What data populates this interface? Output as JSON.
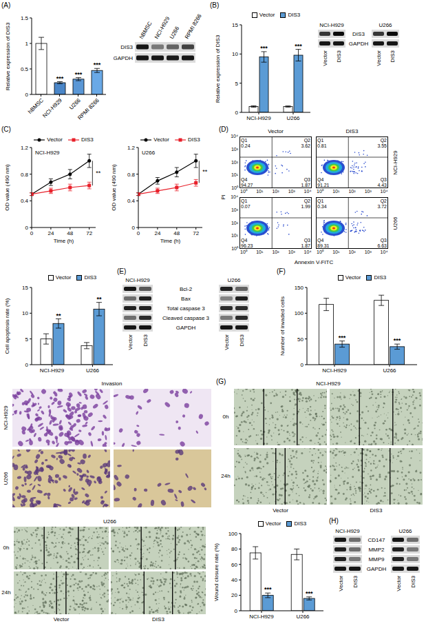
{
  "chart_data": [
    {
      "panel": "(A)",
      "type": "bar",
      "ylabel": "Relative expression of DIS3",
      "categories": [
        "hBMSC",
        "NCI-H929",
        "U266",
        "RPMI 8266"
      ],
      "values": [
        1.0,
        0.23,
        0.3,
        0.47
      ],
      "errors": [
        0.12,
        0.02,
        0.03,
        0.04
      ],
      "significance": [
        null,
        "***",
        "***",
        "***"
      ],
      "colors": [
        "#ffffff",
        "#4a86c8",
        "#5a97d6",
        "#6aa9e6"
      ],
      "ylim": [
        0,
        1.5
      ],
      "yticks": [
        0,
        0.5,
        1,
        1.5
      ]
    },
    {
      "panel": "(B)",
      "type": "bar",
      "ylabel": "Relative expression of DIS3",
      "categories": [
        "NCI-H929",
        "U266"
      ],
      "series": [
        {
          "name": "Vector",
          "color": "#ffffff",
          "values": [
            1,
            1
          ],
          "errors": [
            0.12,
            0.1
          ]
        },
        {
          "name": "DIS3",
          "color": "#5b9bd5",
          "values": [
            9.5,
            9.8
          ],
          "errors": [
            0.9,
            1.0
          ],
          "significance": [
            "***",
            "***"
          ]
        }
      ],
      "ylim": [
        0,
        15
      ],
      "yticks": [
        0,
        5,
        10,
        15
      ],
      "legend": "top"
    },
    {
      "panel": "(C)",
      "type": "line",
      "title": "NCI-H929",
      "xlabel": "Time (h)",
      "ylabel": "OD value (490 nm)",
      "x": [
        0,
        24,
        48,
        72
      ],
      "series": [
        {
          "name": "Vector",
          "color": "#000000",
          "marker": "circle",
          "values": [
            0.5,
            0.68,
            0.8,
            1.0
          ],
          "errors": [
            0.02,
            0.05,
            0.07,
            0.1
          ]
        },
        {
          "name": "DIS3",
          "color": "#e8202a",
          "marker": "square",
          "values": [
            0.5,
            0.55,
            0.6,
            0.63
          ],
          "errors": [
            0.02,
            0.04,
            0.05,
            0.05
          ]
        }
      ],
      "significance": "**",
      "xlim": [
        0,
        80
      ],
      "xticks": [
        0,
        24,
        48,
        72
      ],
      "ylim": [
        0,
        1.2
      ],
      "yticks": [
        0,
        0.4,
        0.8,
        1.2
      ],
      "legend": "top"
    },
    {
      "type": "line",
      "title": "U266",
      "xlabel": "Time (h)",
      "ylabel": "OD value (490 nm)",
      "x": [
        0,
        24,
        48,
        72
      ],
      "series": [
        {
          "name": "Vector",
          "color": "#000000",
          "marker": "circle",
          "values": [
            0.5,
            0.7,
            0.83,
            1.0
          ],
          "errors": [
            0.02,
            0.05,
            0.07,
            0.1
          ]
        },
        {
          "name": "DIS3",
          "color": "#e8202a",
          "marker": "square",
          "values": [
            0.5,
            0.55,
            0.6,
            0.67
          ],
          "errors": [
            0.02,
            0.04,
            0.05,
            0.05
          ]
        }
      ],
      "significance": "**",
      "xlim": [
        0,
        80
      ],
      "xticks": [
        0,
        24,
        48,
        72
      ],
      "ylim": [
        0,
        1.2
      ],
      "yticks": [
        0,
        0.4,
        0.8,
        1.2
      ],
      "legend": "top"
    },
    {
      "type": "bar",
      "ylabel": "Cell apoptosis rate (%)",
      "categories": [
        "NCI-H929",
        "U266"
      ],
      "series": [
        {
          "name": "Vector",
          "color": "#ffffff",
          "values": [
            5.0,
            3.7
          ],
          "errors": [
            1.0,
            0.6
          ]
        },
        {
          "name": "DIS3",
          "color": "#5b9bd5",
          "values": [
            8.0,
            10.8
          ],
          "errors": [
            0.9,
            1.3
          ],
          "significance": [
            "**",
            "**"
          ]
        }
      ],
      "ylim": [
        0,
        15
      ],
      "yticks": [
        0,
        5,
        10,
        15
      ],
      "legend": "top"
    },
    {
      "panel": "(F)",
      "type": "bar",
      "ylabel": "Number of invaded cells",
      "categories": [
        "NCI-H929",
        "U266"
      ],
      "series": [
        {
          "name": "Vector",
          "color": "#ffffff",
          "values": [
            117,
            125
          ],
          "errors": [
            12,
            10
          ]
        },
        {
          "name": "DIS3",
          "color": "#5b9bd5",
          "values": [
            40,
            35
          ],
          "errors": [
            6,
            5
          ],
          "significance": [
            "***",
            "***"
          ]
        }
      ],
      "ylim": [
        0,
        150
      ],
      "yticks": [
        0,
        50,
        100,
        150
      ],
      "legend": "top"
    },
    {
      "type": "bar",
      "ylabel": "Wound closure rate (%)",
      "categories": [
        "NCI-H929",
        "U266"
      ],
      "series": [
        {
          "name": "Vector",
          "color": "#ffffff",
          "values": [
            75,
            73
          ],
          "errors": [
            8,
            7
          ]
        },
        {
          "name": "DIS3",
          "color": "#5b9bd5",
          "values": [
            20,
            16
          ],
          "errors": [
            3,
            2
          ],
          "significance": [
            "***",
            "***"
          ]
        }
      ],
      "ylim": [
        0,
        100
      ],
      "yticks": [
        0,
        20,
        40,
        60,
        80,
        100
      ],
      "legend": "top"
    }
  ],
  "blots": [
    {
      "proteins": [
        "DIS3",
        "GAPDH"
      ],
      "groups": [
        {
          "lanes": [
            "hBMSC",
            "NCI-H929",
            "U266",
            "RPMI 8266"
          ],
          "intensity": [
            [
              0.9,
              0.45,
              0.55,
              0.7
            ],
            [
              0.9,
              0.9,
              0.88,
              0.9
            ]
          ]
        }
      ]
    },
    {
      "proteins": [
        "DIS3",
        "GAPDH"
      ],
      "groups": [
        {
          "cell_line": "NCI-H929",
          "lanes": [
            "Vector",
            "DIS3"
          ],
          "intensity": [
            [
              0.75,
              0.95
            ],
            [
              0.9,
              0.9
            ]
          ]
        },
        {
          "cell_line": "U266",
          "lanes": [
            "Vector",
            "DIS3"
          ],
          "intensity": [
            [
              0.75,
              0.95
            ],
            [
              0.9,
              0.9
            ]
          ]
        }
      ]
    },
    {
      "panel": "(E)",
      "proteins": [
        "Bcl-2",
        "Bax",
        "Total caspase 3",
        "Cleaved caspase 3",
        "GAPDH"
      ],
      "groups": [
        {
          "cell_line": "NCI-H929",
          "lanes": [
            "Vector",
            "DIS3"
          ],
          "intensity": [
            [
              0.9,
              0.6
            ],
            [
              0.5,
              0.85
            ],
            [
              0.85,
              0.85
            ],
            [
              0.5,
              0.8
            ],
            [
              0.9,
              0.9
            ]
          ]
        },
        {
          "cell_line": "U266",
          "lanes": [
            "Vector",
            "DIS3"
          ],
          "intensity": [
            [
              0.85,
              0.55
            ],
            [
              0.4,
              0.85
            ],
            [
              0.8,
              0.8
            ],
            [
              0.45,
              0.8
            ],
            [
              0.9,
              0.9
            ]
          ]
        }
      ]
    },
    {
      "panel": "(H)",
      "proteins": [
        "CD147",
        "MMP2",
        "MMP9",
        "GAPDH"
      ],
      "groups": [
        {
          "cell_line": "NCI-H929",
          "lanes": [
            "Vector",
            "DIS3"
          ],
          "intensity": [
            [
              0.9,
              0.5
            ],
            [
              0.85,
              0.5
            ],
            [
              0.85,
              0.45
            ],
            [
              0.9,
              0.9
            ]
          ]
        },
        {
          "cell_line": "U266",
          "lanes": [
            "Vector",
            "DIS3"
          ],
          "intensity": [
            [
              0.9,
              0.5
            ],
            [
              0.85,
              0.45
            ],
            [
              0.85,
              0.45
            ],
            [
              0.9,
              0.9
            ]
          ]
        }
      ]
    }
  ],
  "flow": {
    "panel": "(D)",
    "xlabel": "Annexin V-FITC",
    "ylabel": "PI",
    "ticks": [
      {
        "value": 1,
        "label": "10⁰"
      },
      {
        "value": 10,
        "label": "10¹"
      },
      {
        "value": 100,
        "label": "10²"
      },
      {
        "value": 1000,
        "label": "10³"
      },
      {
        "value": 10000,
        "label": "10⁴"
      }
    ],
    "columns": [
      "Vector",
      "DIS3"
    ],
    "rows": [
      {
        "cell_line": "NCI-H929",
        "plots": [
          [
            {
              "name": "Q1",
              "value": 0.24
            },
            {
              "name": "Q2",
              "value": 3.62
            },
            {
              "name": "Q3",
              "value": 1.87
            },
            {
              "name": "Q4",
              "value": 94.27
            }
          ],
          [
            {
              "name": "Q1",
              "value": 0.81
            },
            {
              "name": "Q2",
              "value": 3.55
            },
            {
              "name": "Q3",
              "value": 4.43
            },
            {
              "name": "Q4",
              "value": 91.21
            }
          ]
        ]
      },
      {
        "cell_line": "U266",
        "plots": [
          [
            {
              "name": "Q1",
              "value": 0.07
            },
            {
              "name": "Q2",
              "value": 1.99
            },
            {
              "name": "Q3",
              "value": 1.87
            },
            {
              "name": "Q4",
              "value": 96.23
            }
          ],
          [
            {
              "name": "Q1",
              "value": 0.34
            },
            {
              "name": "Q2",
              "value": 3.72
            },
            {
              "name": "Q3",
              "value": 6.63
            },
            {
              "name": "Q4",
              "value": 89.31
            }
          ]
        ]
      }
    ]
  },
  "invasion": {
    "title": "Invasion",
    "rows": [
      "NCI-H929",
      "U266"
    ]
  },
  "wound": {
    "panel": "(G)",
    "panels": [
      {
        "title": "NCI-H929",
        "rows": [
          "0h",
          "24h"
        ],
        "columns": [
          "Vector",
          "DIS3"
        ]
      },
      {
        "title": "U266",
        "rows": [
          "0h",
          "24h"
        ],
        "columns": [
          "Vector",
          "DIS3"
        ]
      }
    ]
  }
}
